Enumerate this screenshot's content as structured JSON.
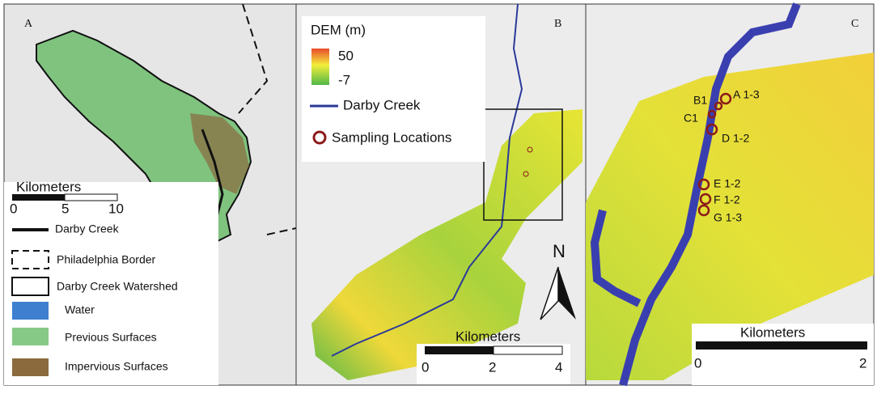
{
  "panels": {
    "a": {
      "label": "A",
      "scale_bar": {
        "title": "Kilometers",
        "ticks": [
          0,
          5,
          10
        ]
      },
      "legend": [
        {
          "label": "Darby Creek"
        },
        {
          "label": "Philadelphia Border"
        },
        {
          "label": "Darby Creek Watershed"
        },
        {
          "label": "Water"
        },
        {
          "label": "Previous Surfaces"
        },
        {
          "label": "Impervious Surfaces"
        }
      ]
    },
    "b": {
      "label": "B",
      "legend": {
        "title": "DEM (m)",
        "max": 50,
        "min": -7,
        "river": "Darby Creek",
        "sites": "Sampling Locations"
      },
      "north": "N",
      "scale_bar": {
        "title": "Kilometers",
        "ticks": [
          0,
          2,
          4
        ]
      }
    },
    "c": {
      "label": "C",
      "sites": [
        "A 1-3",
        "B1",
        "C1",
        "D 1-2",
        "E 1-2",
        "F 1-2",
        "G 1-3"
      ],
      "scale_bar": {
        "title": "Kilometers",
        "ticks": [
          0,
          2
        ]
      }
    }
  }
}
